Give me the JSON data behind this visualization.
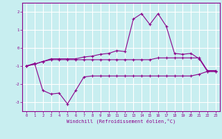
{
  "title": "",
  "xlabel": "Windchill (Refroidissement éolien,°C)",
  "background_color": "#c8eef0",
  "line_color": "#8b008b",
  "grid_color": "#ffffff",
  "x_values": [
    0,
    1,
    2,
    3,
    4,
    5,
    6,
    7,
    8,
    9,
    10,
    11,
    12,
    13,
    14,
    15,
    16,
    17,
    18,
    19,
    20,
    21,
    22,
    23
  ],
  "line1": [
    -1.0,
    -0.9,
    -0.75,
    -0.6,
    -0.6,
    -0.6,
    -0.6,
    -0.5,
    -0.45,
    -0.35,
    -0.3,
    -0.15,
    -0.2,
    1.6,
    1.9,
    1.3,
    1.9,
    1.2,
    -0.3,
    -0.35,
    -0.3,
    -0.6,
    -1.3,
    -1.3
  ],
  "line2": [
    -1.0,
    -0.9,
    -0.75,
    -0.65,
    -0.65,
    -0.65,
    -0.65,
    -0.65,
    -0.65,
    -0.65,
    -0.65,
    -0.65,
    -0.65,
    -0.65,
    -0.65,
    -0.65,
    -0.55,
    -0.55,
    -0.55,
    -0.55,
    -0.55,
    -0.55,
    -1.25,
    -1.25
  ],
  "line3": [
    -1.0,
    -0.85,
    -2.35,
    -2.55,
    -2.5,
    -3.1,
    -2.35,
    -1.6,
    -1.55,
    -1.55,
    -1.55,
    -1.55,
    -1.55,
    -1.55,
    -1.55,
    -1.55,
    -1.55,
    -1.55,
    -1.55,
    -1.55,
    -1.55,
    -1.45,
    -1.3,
    -1.3
  ],
  "ylim": [
    -3.5,
    2.5
  ],
  "yticks": [
    -3,
    -2,
    -1,
    0,
    1,
    2
  ],
  "xticks": [
    0,
    1,
    2,
    3,
    4,
    5,
    6,
    7,
    8,
    9,
    10,
    11,
    12,
    13,
    14,
    15,
    16,
    17,
    18,
    19,
    20,
    21,
    22,
    23
  ]
}
